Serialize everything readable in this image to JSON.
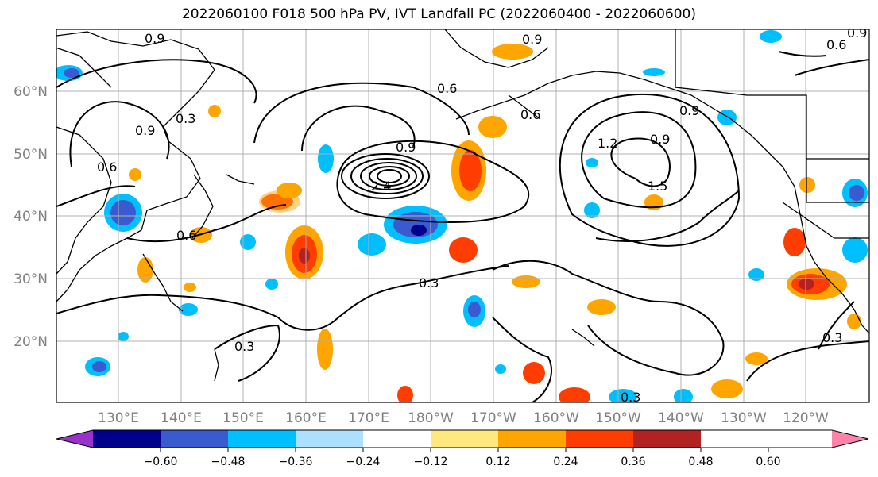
{
  "title": "2022060100 F018 500 hPa PV, IVT Landfall PC (2022060400 - 2022060600)",
  "lat_labels": [
    "60°N",
    "50°N",
    "40°N",
    "30°N",
    "20°N"
  ],
  "lon_labels": [
    "130°E",
    "140°E",
    "150°E",
    "160°E",
    "170°E",
    "180°W",
    "170°W",
    "160°W",
    "150°W",
    "140°W",
    "130°W",
    "120°W"
  ],
  "colorbar": {
    "colors": [
      "#9932CC",
      "#00008B",
      "#3A5BCF",
      "#00BFFF",
      "#ADDFFF",
      "#FFFFFF",
      "#FFE97F",
      "#FFA500",
      "#FF3D00",
      "#B22222",
      "#FF82AA"
    ],
    "tick_labels": [
      "−0.60",
      "−0.48",
      "−0.36",
      "−0.24",
      "−0.12",
      "0.12",
      "0.24",
      "0.36",
      "0.48",
      "0.60"
    ]
  },
  "contour_labels": [
    "0.9",
    "0.9",
    "0.6",
    "0.6",
    "0.9",
    "0.9",
    "0.3",
    "0.3",
    "0.3",
    "0.3",
    "0.9",
    "1.2",
    "1.5",
    "0.9",
    "0.6",
    "0.6",
    "2.4",
    "0.3",
    "0.6",
    "0.9"
  ],
  "colors": {
    "land_line": "#000000",
    "grid": "#b0b0b0",
    "contour": "#000000"
  }
}
